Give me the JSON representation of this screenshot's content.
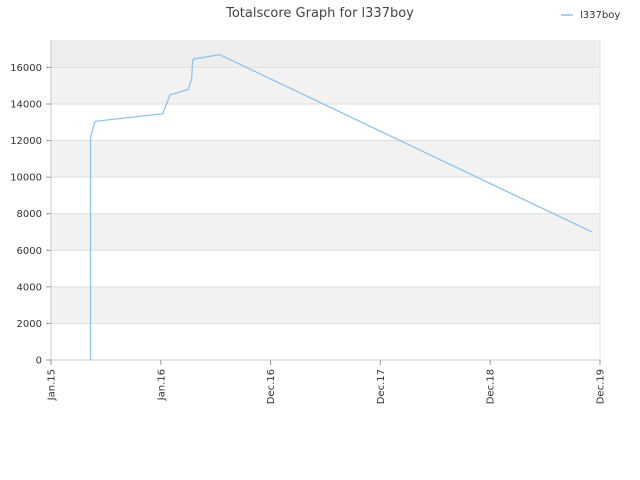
{
  "chart_data": {
    "type": "line",
    "title": "Totalscore Graph for l337boy",
    "xlabel": "",
    "ylabel": "",
    "x_ticks": [
      "Jan.15",
      "Jan.16",
      "Dec.16",
      "Dec.17",
      "Dec.18",
      "Dec.19"
    ],
    "y_ticks": [
      "0",
      "2000",
      "4000",
      "6000",
      "8000",
      "10000",
      "12000",
      "14000",
      "16000"
    ],
    "ylim": [
      0,
      17500
    ],
    "grid": true,
    "legend_position": "top-right",
    "series": [
      {
        "name": "l337boy",
        "color": "#90c4ee",
        "x": [
          "2015-05-10",
          "2015-05-10",
          "2015-05-10",
          "2015-05-12",
          "2015-05-25",
          "2015-12-20",
          "2016-01-01",
          "2016-01-25",
          "2016-03-25",
          "2016-04-05",
          "2016-04-08",
          "2016-04-10",
          "2016-07-05",
          "2019-11-05"
        ],
        "values": [
          0,
          9500,
          12100,
          12300,
          13050,
          13450,
          13450,
          14500,
          14800,
          15400,
          16300,
          16450,
          16700,
          7000
        ]
      }
    ]
  }
}
